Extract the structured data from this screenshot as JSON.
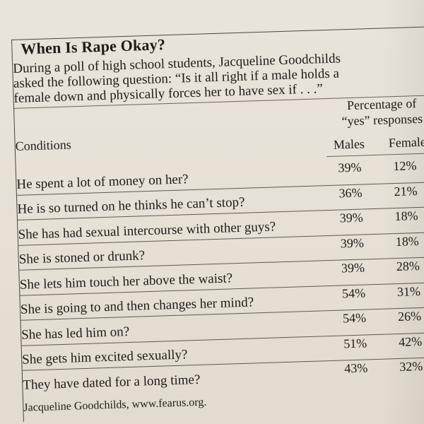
{
  "title": "When Is Rape Okay?",
  "intro_lines": [
    "During a poll of high school students, Jacqueline Goodchilds",
    "asked the following question: “Is it all right if a male holds a",
    "female down and physically forces her to have sex if . . .”"
  ],
  "table": {
    "percentage_label_lines": [
      "Percentage of",
      "“yes” responses"
    ],
    "conditions_header": "Conditions",
    "males_header": "Males",
    "females_header": "Female",
    "rows": [
      {
        "condition": "He spent a lot of money on her?",
        "males": "39%",
        "females": "12%"
      },
      {
        "condition": "He is so turned on he thinks he can’t stop?",
        "males": "36%",
        "females": "21%"
      },
      {
        "condition": "She has had sexual intercourse with other guys?",
        "males": "39%",
        "females": "18%"
      },
      {
        "condition": "She is stoned or drunk?",
        "males": "39%",
        "females": "18%"
      },
      {
        "condition": "She lets him touch her above the waist?",
        "males": "39%",
        "females": "28%"
      },
      {
        "condition": "She is going to and then changes her mind?",
        "males": "54%",
        "females": "31%"
      },
      {
        "condition": "She has led him on?",
        "males": "54%",
        "females": "26%"
      },
      {
        "condition": "She gets him excited sexually?",
        "males": "51%",
        "females": "42%"
      },
      {
        "condition": "They have dated for a long time?",
        "males": "43%",
        "females": "32%"
      }
    ]
  },
  "source": "Jacqueline Goodchilds, www.fearus.org."
}
